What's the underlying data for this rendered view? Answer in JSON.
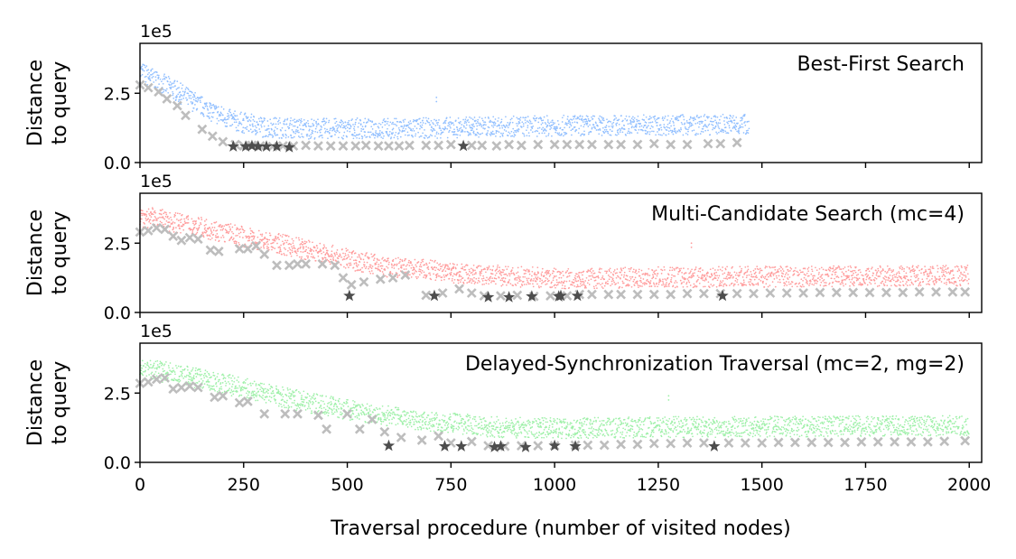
{
  "figure": {
    "xlabel": "Traversal procedure (number of visited nodes)",
    "ylabel": "Distance\nto query",
    "xticks": [
      0,
      250,
      500,
      750,
      1000,
      1250,
      1500,
      1750,
      2000
    ],
    "xtick_labels": [
      "0",
      "250",
      "500",
      "750",
      "1000",
      "1250",
      "1500",
      "1750",
      "2000"
    ],
    "yticks": [
      0,
      2.5
    ],
    "ytick_labels": [
      "0.0",
      "2.5"
    ],
    "y_offset_label": "1e5",
    "xlim": [
      0,
      2030
    ],
    "ylim": [
      0,
      4.3
    ]
  },
  "chart_data": [
    {
      "type": "scatter",
      "title": "Best-First Search",
      "color": "#91bfff",
      "n_visited": 1470,
      "explored_color": "#bdbdbd",
      "explored": [
        [
          0,
          2.8
        ],
        [
          20,
          2.7
        ],
        [
          45,
          2.55
        ],
        [
          65,
          2.3
        ],
        [
          90,
          2.05
        ],
        [
          110,
          1.7
        ],
        [
          150,
          1.2
        ],
        [
          175,
          0.95
        ],
        [
          200,
          0.75
        ],
        [
          230,
          0.65
        ],
        [
          250,
          0.6
        ],
        [
          270,
          0.62
        ],
        [
          290,
          0.6
        ],
        [
          320,
          0.58
        ],
        [
          345,
          0.6
        ],
        [
          370,
          0.6
        ],
        [
          400,
          0.62
        ],
        [
          430,
          0.6
        ],
        [
          460,
          0.6
        ],
        [
          490,
          0.6
        ],
        [
          520,
          0.6
        ],
        [
          545,
          0.62
        ],
        [
          575,
          0.6
        ],
        [
          600,
          0.6
        ],
        [
          625,
          0.6
        ],
        [
          650,
          0.62
        ],
        [
          690,
          0.62
        ],
        [
          720,
          0.62
        ],
        [
          750,
          0.65
        ],
        [
          800,
          0.62
        ],
        [
          825,
          0.62
        ],
        [
          860,
          0.6
        ],
        [
          890,
          0.65
        ],
        [
          920,
          0.62
        ],
        [
          960,
          0.65
        ],
        [
          1000,
          0.65
        ],
        [
          1030,
          0.65
        ],
        [
          1060,
          0.65
        ],
        [
          1090,
          0.65
        ],
        [
          1130,
          0.65
        ],
        [
          1160,
          0.65
        ],
        [
          1200,
          0.65
        ],
        [
          1240,
          0.68
        ],
        [
          1280,
          0.65
        ],
        [
          1320,
          0.65
        ],
        [
          1370,
          0.68
        ],
        [
          1400,
          0.68
        ],
        [
          1440,
          0.72
        ]
      ],
      "best_color": "#4d4d4d",
      "best": [
        [
          225,
          0.58
        ],
        [
          255,
          0.58
        ],
        [
          270,
          0.6
        ],
        [
          285,
          0.58
        ],
        [
          305,
          0.58
        ],
        [
          330,
          0.58
        ],
        [
          360,
          0.55
        ],
        [
          780,
          0.6
        ]
      ],
      "outliers": [
        [
          715,
          2.35
        ]
      ],
      "noise_curve": [
        [
          0,
          3.1
        ],
        [
          40,
          2.8
        ],
        [
          100,
          2.3
        ],
        [
          160,
          1.75
        ],
        [
          220,
          1.35
        ],
        [
          300,
          1.1
        ],
        [
          400,
          1.05
        ],
        [
          600,
          1.05
        ],
        [
          800,
          1.1
        ],
        [
          1000,
          1.15
        ],
        [
          1470,
          1.2
        ]
      ]
    },
    {
      "type": "scatter",
      "title": "Multi-Candidate Search (mc=4)",
      "color": "#ff9c9c",
      "n_visited": 2000,
      "explored_color": "#bdbdbd",
      "explored": [
        [
          0,
          2.9
        ],
        [
          20,
          2.95
        ],
        [
          40,
          3.05
        ],
        [
          60,
          3.0
        ],
        [
          80,
          2.75
        ],
        [
          100,
          2.6
        ],
        [
          120,
          2.7
        ],
        [
          140,
          2.65
        ],
        [
          170,
          2.25
        ],
        [
          190,
          2.2
        ],
        [
          240,
          2.3
        ],
        [
          260,
          2.3
        ],
        [
          280,
          2.4
        ],
        [
          300,
          2.1
        ],
        [
          330,
          1.7
        ],
        [
          360,
          1.7
        ],
        [
          380,
          1.75
        ],
        [
          400,
          1.75
        ],
        [
          440,
          1.75
        ],
        [
          470,
          1.7
        ],
        [
          490,
          1.25
        ],
        [
          510,
          1.0
        ],
        [
          540,
          1.1
        ],
        [
          580,
          1.2
        ],
        [
          610,
          1.25
        ],
        [
          640,
          1.35
        ],
        [
          690,
          0.62
        ],
        [
          730,
          0.7
        ],
        [
          770,
          0.85
        ],
        [
          800,
          0.7
        ],
        [
          830,
          0.6
        ],
        [
          870,
          0.6
        ],
        [
          910,
          0.62
        ],
        [
          950,
          0.58
        ],
        [
          990,
          0.6
        ],
        [
          1030,
          0.6
        ],
        [
          1060,
          0.65
        ],
        [
          1090,
          0.65
        ],
        [
          1130,
          0.65
        ],
        [
          1160,
          0.65
        ],
        [
          1200,
          0.65
        ],
        [
          1240,
          0.65
        ],
        [
          1280,
          0.65
        ],
        [
          1320,
          0.68
        ],
        [
          1360,
          0.68
        ],
        [
          1400,
          0.68
        ],
        [
          1440,
          0.68
        ],
        [
          1480,
          0.68
        ],
        [
          1520,
          0.7
        ],
        [
          1560,
          0.7
        ],
        [
          1600,
          0.7
        ],
        [
          1640,
          0.72
        ],
        [
          1680,
          0.72
        ],
        [
          1720,
          0.72
        ],
        [
          1760,
          0.72
        ],
        [
          1800,
          0.72
        ],
        [
          1840,
          0.72
        ],
        [
          1880,
          0.74
        ],
        [
          1920,
          0.74
        ],
        [
          1960,
          0.74
        ],
        [
          1990,
          0.74
        ]
      ],
      "best_color": "#4d4d4d",
      "best": [
        [
          505,
          0.6
        ],
        [
          710,
          0.6
        ],
        [
          840,
          0.55
        ],
        [
          890,
          0.55
        ],
        [
          945,
          0.58
        ],
        [
          1010,
          0.58
        ],
        [
          1015,
          0.6
        ],
        [
          1055,
          0.6
        ],
        [
          1405,
          0.6
        ]
      ],
      "outliers": [
        [
          1330,
          2.5
        ]
      ],
      "noise_curve": [
        [
          0,
          3.3
        ],
        [
          120,
          3.0
        ],
        [
          250,
          2.55
        ],
        [
          400,
          2.1
        ],
        [
          500,
          1.75
        ],
        [
          600,
          1.45
        ],
        [
          700,
          1.35
        ],
        [
          800,
          1.2
        ],
        [
          1000,
          1.05
        ],
        [
          1300,
          1.1
        ],
        [
          2000,
          1.15
        ]
      ]
    },
    {
      "type": "scatter",
      "title": "Delayed-Synchronization Traversal (mc=2, mg=2)",
      "color": "#9ef0a8",
      "n_visited": 2000,
      "explored_color": "#bdbdbd",
      "explored": [
        [
          0,
          2.85
        ],
        [
          20,
          2.9
        ],
        [
          40,
          3.0
        ],
        [
          60,
          3.05
        ],
        [
          80,
          2.65
        ],
        [
          100,
          2.7
        ],
        [
          120,
          2.75
        ],
        [
          140,
          2.7
        ],
        [
          180,
          2.35
        ],
        [
          200,
          2.4
        ],
        [
          240,
          2.15
        ],
        [
          260,
          2.2
        ],
        [
          300,
          1.75
        ],
        [
          350,
          1.75
        ],
        [
          380,
          1.75
        ],
        [
          430,
          1.7
        ],
        [
          450,
          1.2
        ],
        [
          500,
          1.75
        ],
        [
          530,
          1.2
        ],
        [
          560,
          1.55
        ],
        [
          590,
          1.1
        ],
        [
          630,
          0.9
        ],
        [
          680,
          0.8
        ],
        [
          720,
          0.95
        ],
        [
          750,
          0.7
        ],
        [
          800,
          0.75
        ],
        [
          840,
          0.6
        ],
        [
          880,
          0.58
        ],
        [
          920,
          0.6
        ],
        [
          960,
          0.6
        ],
        [
          1000,
          0.6
        ],
        [
          1050,
          0.62
        ],
        [
          1080,
          0.62
        ],
        [
          1120,
          0.62
        ],
        [
          1160,
          0.65
        ],
        [
          1200,
          0.65
        ],
        [
          1240,
          0.68
        ],
        [
          1280,
          0.68
        ],
        [
          1320,
          0.7
        ],
        [
          1360,
          0.7
        ],
        [
          1420,
          0.7
        ],
        [
          1460,
          0.7
        ],
        [
          1500,
          0.7
        ],
        [
          1540,
          0.72
        ],
        [
          1580,
          0.72
        ],
        [
          1620,
          0.72
        ],
        [
          1660,
          0.72
        ],
        [
          1700,
          0.72
        ],
        [
          1740,
          0.74
        ],
        [
          1780,
          0.74
        ],
        [
          1820,
          0.74
        ],
        [
          1860,
          0.74
        ],
        [
          1900,
          0.74
        ],
        [
          1940,
          0.76
        ],
        [
          1990,
          0.78
        ]
      ],
      "best_color": "#4d4d4d",
      "best": [
        [
          600,
          0.6
        ],
        [
          735,
          0.58
        ],
        [
          775,
          0.58
        ],
        [
          855,
          0.55
        ],
        [
          870,
          0.58
        ],
        [
          930,
          0.55
        ],
        [
          1000,
          0.6
        ],
        [
          1050,
          0.58
        ],
        [
          1385,
          0.58
        ]
      ],
      "outliers": [
        [
          1275,
          2.4
        ]
      ],
      "noise_curve": [
        [
          0,
          3.2
        ],
        [
          100,
          3.0
        ],
        [
          250,
          2.5
        ],
        [
          400,
          2.0
        ],
        [
          550,
          1.6
        ],
        [
          700,
          1.3
        ],
        [
          850,
          1.1
        ],
        [
          1000,
          1.05
        ],
        [
          1300,
          1.1
        ],
        [
          2000,
          1.15
        ]
      ]
    }
  ]
}
